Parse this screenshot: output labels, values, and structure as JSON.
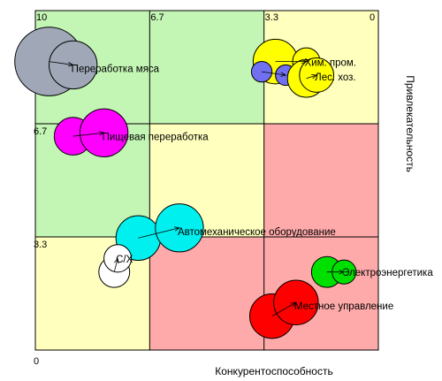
{
  "chart_data": {
    "type": "scatter",
    "subtype": "bubble-matrix",
    "xlabel": "Конкурентоспособность",
    "ylabel": "Привлекательность",
    "x_ticks": [
      "10",
      "6.7",
      "3.3",
      "0"
    ],
    "y_ticks": [
      "6.7",
      "3.3",
      "0"
    ],
    "x_reversed": true,
    "xlim": [
      10,
      0
    ],
    "ylim": [
      0,
      10
    ],
    "grid": true,
    "zone_colors": {
      "green": "#c3f5b4",
      "yellow": "#ffffbe",
      "red": "#ffaaaa"
    },
    "zones": [
      [
        "green",
        "green",
        "yellow"
      ],
      [
        "green",
        "yellow",
        "red"
      ],
      [
        "yellow",
        "red",
        "red"
      ]
    ],
    "points": [
      {
        "label": "Переработка мяса",
        "color": "#a0a8b8",
        "x0": 9.6,
        "y0": 8.5,
        "x1": 8.9,
        "y1": 8.4,
        "r0": 1.0,
        "r1": 0.7
      },
      {
        "label": "Пищевая переработка",
        "color": "#ff00ff",
        "x0": 8.9,
        "y0": 6.3,
        "x1": 8.0,
        "y1": 6.4,
        "r0": 0.55,
        "r1": 0.7
      },
      {
        "label": "Хим. пром.",
        "color": "#ffff00",
        "x0": 3.0,
        "y0": 8.5,
        "x1": 2.1,
        "y1": 8.5,
        "r0": 0.65,
        "r1": 0.4
      },
      {
        "label": "",
        "color": "#7070f0",
        "x0": 3.4,
        "y0": 8.2,
        "x1": 2.7,
        "y1": 8.1,
        "r0": 0.3,
        "r1": 0.3
      },
      {
        "label": "Лес. хоз.",
        "color": "#ffff00",
        "x0": 2.1,
        "y0": 8.0,
        "x1": 1.8,
        "y1": 8.1,
        "r0": 0.55,
        "r1": 0.5
      },
      {
        "label": "Автомеханическое оборудование",
        "color": "#00f0f0",
        "x0": 7.0,
        "y0": 3.3,
        "x1": 5.8,
        "y1": 3.6,
        "r0": 0.65,
        "r1": 0.7
      },
      {
        "label": "С/Х",
        "color": "#ffffff",
        "x0": 7.7,
        "y0": 2.3,
        "x1": 7.6,
        "y1": 2.7,
        "r0": 0.45,
        "r1": 0.4
      },
      {
        "label": "Электроэнергетика",
        "color": "#00e000",
        "x0": 1.5,
        "y0": 2.3,
        "x1": 1.0,
        "y1": 2.3,
        "r0": 0.45,
        "r1": 0.35
      },
      {
        "label": "Местное управление",
        "color": "#ff0000",
        "x0": 3.1,
        "y0": 1.0,
        "x1": 2.4,
        "y1": 1.4,
        "r0": 0.65,
        "r1": 0.65
      }
    ]
  }
}
